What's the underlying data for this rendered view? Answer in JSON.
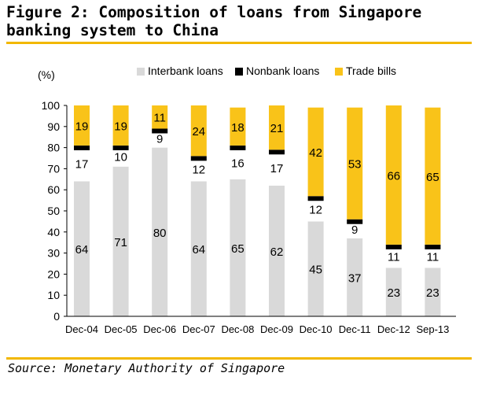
{
  "figure": {
    "title": "Figure 2: Composition of loans from Singapore banking system to China",
    "source": "Source: Monetary Authority of Singapore"
  },
  "chart_data": {
    "type": "bar",
    "stacked": true,
    "unit_label": "(%)",
    "ylim": [
      0,
      100
    ],
    "yticks": [
      0,
      10,
      20,
      30,
      40,
      50,
      60,
      70,
      80,
      90,
      100
    ],
    "categories": [
      "Dec-04",
      "Dec-05",
      "Dec-06",
      "Dec-07",
      "Dec-08",
      "Dec-09",
      "Dec-10",
      "Dec-11",
      "Dec-12",
      "Sep-13"
    ],
    "series": [
      {
        "name": "Interbank loans",
        "color": "#d9d9d9",
        "values": [
          64,
          71,
          80,
          64,
          65,
          62,
          45,
          37,
          23,
          23
        ]
      },
      {
        "name": "Nonbank loans",
        "color": "#000000",
        "values": [
          17,
          10,
          9,
          12,
          16,
          17,
          12,
          9,
          11,
          11
        ]
      },
      {
        "name": "Trade bills",
        "color": "#f9c319",
        "values": [
          19,
          19,
          11,
          24,
          18,
          21,
          42,
          53,
          66,
          65
        ]
      }
    ],
    "legend_position": "top",
    "grid": false
  }
}
